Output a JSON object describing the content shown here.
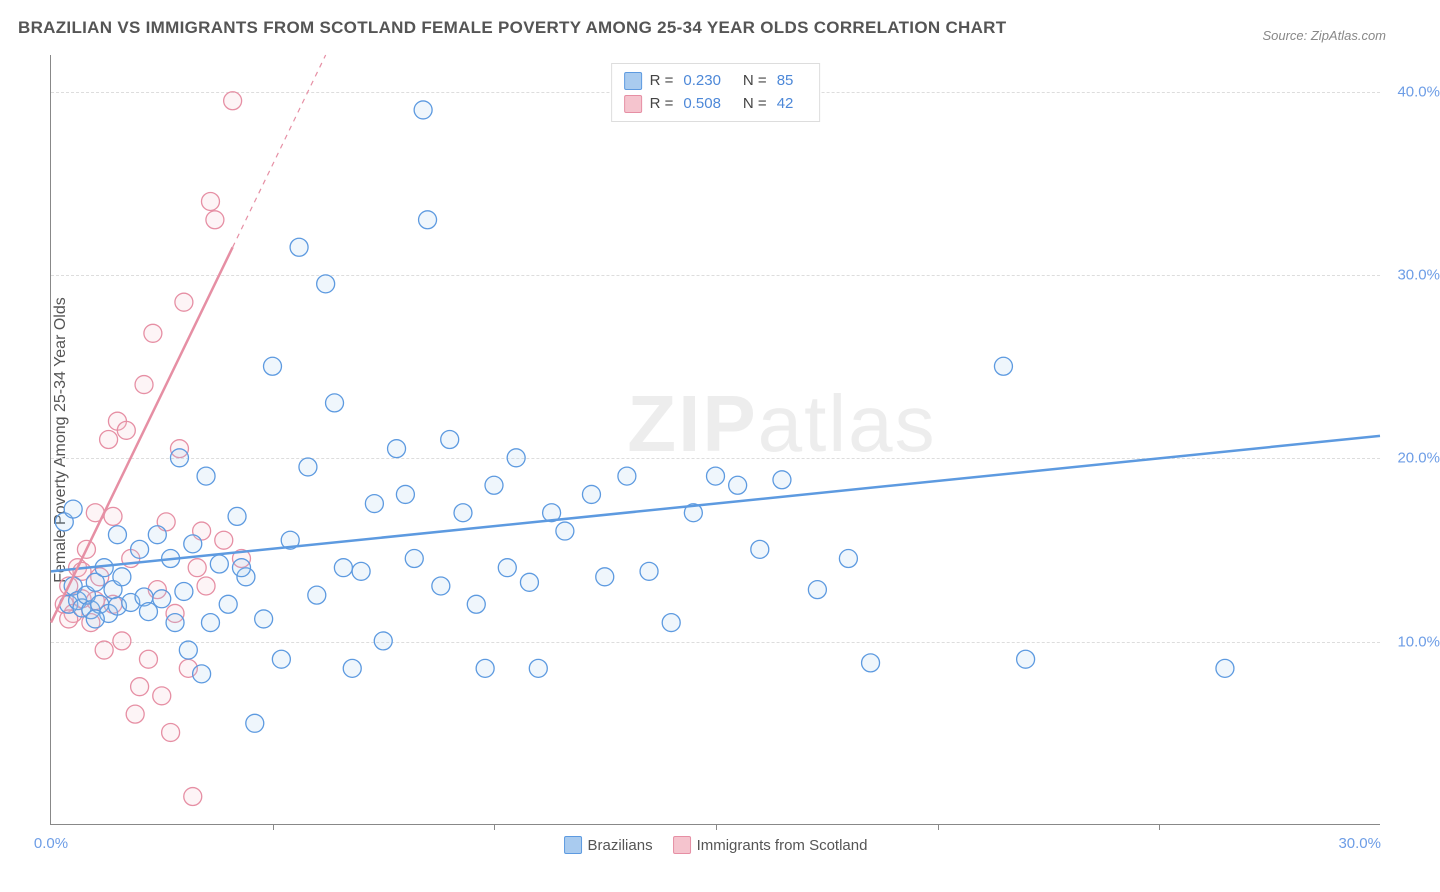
{
  "title": "BRAZILIAN VS IMMIGRANTS FROM SCOTLAND FEMALE POVERTY AMONG 25-34 YEAR OLDS CORRELATION CHART",
  "source_label": "Source: ZipAtlas.com",
  "watermark_a": "ZIP",
  "watermark_b": "atlas",
  "y_axis_title": "Female Poverty Among 25-34 Year Olds",
  "chart": {
    "type": "scatter",
    "background_color": "#ffffff",
    "grid_color": "#dddddd",
    "axis_color": "#888888",
    "xlim": [
      0,
      30
    ],
    "ylim": [
      0,
      42
    ],
    "ytick_step": 10,
    "xtick_step": 5,
    "x_labels": [
      "0.0%",
      "30.0%"
    ],
    "y_labels": [
      "10.0%",
      "20.0%",
      "30.0%",
      "40.0%"
    ],
    "tick_label_color": "#6d9de6",
    "axis_title_color": "#555555",
    "title_fontsize": 17,
    "label_fontsize": 15,
    "marker_radius": 9,
    "marker_stroke_width": 1.3,
    "marker_fill_opacity": 0.18,
    "trend_line_width": 2.5,
    "series": [
      {
        "name": "Brazilians",
        "color": "#5d9ae0",
        "fill_color": "#a9cbef",
        "stroke_color": "#5d9ae0",
        "R": "0.230",
        "N": "85",
        "trend": {
          "x1": 0,
          "y1": 13.8,
          "x2": 30,
          "y2": 21.2,
          "dashed_extension": false
        },
        "points": [
          [
            0.3,
            16.5
          ],
          [
            0.4,
            12.0
          ],
          [
            0.5,
            13.0
          ],
          [
            0.6,
            12.2
          ],
          [
            0.7,
            11.8
          ],
          [
            0.8,
            12.5
          ],
          [
            0.9,
            11.7
          ],
          [
            1.0,
            13.2
          ],
          [
            1.1,
            12.0
          ],
          [
            1.2,
            14.0
          ],
          [
            1.3,
            11.5
          ],
          [
            1.4,
            12.8
          ],
          [
            1.5,
            11.9
          ],
          [
            1.6,
            13.5
          ],
          [
            1.8,
            12.1
          ],
          [
            2.0,
            15.0
          ],
          [
            2.1,
            12.4
          ],
          [
            2.2,
            11.6
          ],
          [
            2.4,
            15.8
          ],
          [
            2.5,
            12.3
          ],
          [
            2.7,
            14.5
          ],
          [
            2.9,
            20.0
          ],
          [
            3.0,
            12.7
          ],
          [
            3.1,
            9.5
          ],
          [
            3.2,
            15.3
          ],
          [
            3.4,
            8.2
          ],
          [
            3.5,
            19.0
          ],
          [
            3.6,
            11.0
          ],
          [
            3.8,
            14.2
          ],
          [
            4.0,
            12.0
          ],
          [
            4.2,
            16.8
          ],
          [
            4.4,
            13.5
          ],
          [
            4.6,
            5.5
          ],
          [
            4.8,
            11.2
          ],
          [
            5.0,
            25.0
          ],
          [
            5.2,
            9.0
          ],
          [
            5.4,
            15.5
          ],
          [
            5.6,
            31.5
          ],
          [
            5.8,
            19.5
          ],
          [
            6.0,
            12.5
          ],
          [
            6.2,
            29.5
          ],
          [
            6.4,
            23.0
          ],
          [
            6.6,
            14.0
          ],
          [
            6.8,
            8.5
          ],
          [
            7.0,
            13.8
          ],
          [
            7.3,
            17.5
          ],
          [
            7.5,
            10.0
          ],
          [
            7.8,
            20.5
          ],
          [
            8.0,
            18.0
          ],
          [
            8.2,
            14.5
          ],
          [
            8.4,
            39.0
          ],
          [
            8.5,
            33.0
          ],
          [
            8.8,
            13.0
          ],
          [
            9.0,
            21.0
          ],
          [
            9.3,
            17.0
          ],
          [
            9.6,
            12.0
          ],
          [
            9.8,
            8.5
          ],
          [
            10.0,
            18.5
          ],
          [
            10.3,
            14.0
          ],
          [
            10.5,
            20.0
          ],
          [
            10.8,
            13.2
          ],
          [
            11.0,
            8.5
          ],
          [
            11.3,
            17.0
          ],
          [
            11.6,
            16.0
          ],
          [
            12.2,
            18.0
          ],
          [
            12.5,
            13.5
          ],
          [
            13.0,
            19.0
          ],
          [
            13.5,
            13.8
          ],
          [
            14.0,
            11.0
          ],
          [
            14.5,
            17.0
          ],
          [
            15.0,
            19.0
          ],
          [
            15.5,
            18.5
          ],
          [
            16.0,
            15.0
          ],
          [
            16.5,
            18.8
          ],
          [
            17.3,
            12.8
          ],
          [
            18.0,
            14.5
          ],
          [
            18.5,
            8.8
          ],
          [
            21.5,
            25.0
          ],
          [
            22.0,
            9.0
          ],
          [
            26.5,
            8.5
          ],
          [
            0.5,
            17.2
          ],
          [
            1.0,
            11.2
          ],
          [
            1.5,
            15.8
          ],
          [
            2.8,
            11.0
          ],
          [
            4.3,
            14.0
          ]
        ]
      },
      {
        "name": "Immigrants from Scotland",
        "color": "#e68fa4",
        "fill_color": "#f5c4ce",
        "stroke_color": "#e68fa4",
        "R": "0.508",
        "N": "42",
        "trend": {
          "x1": 0,
          "y1": 11.0,
          "x2": 4.1,
          "y2": 31.5,
          "dashed_extension": true,
          "dx2": 6.2,
          "dy2": 42
        },
        "points": [
          [
            0.3,
            12.0
          ],
          [
            0.4,
            13.0
          ],
          [
            0.5,
            11.5
          ],
          [
            0.6,
            14.0
          ],
          [
            0.7,
            12.3
          ],
          [
            0.8,
            15.0
          ],
          [
            0.9,
            11.0
          ],
          [
            1.0,
            17.0
          ],
          [
            1.1,
            13.5
          ],
          [
            1.2,
            9.5
          ],
          [
            1.3,
            21.0
          ],
          [
            1.4,
            12.0
          ],
          [
            1.5,
            22.0
          ],
          [
            1.6,
            10.0
          ],
          [
            1.7,
            21.5
          ],
          [
            1.8,
            14.5
          ],
          [
            1.9,
            6.0
          ],
          [
            2.0,
            7.5
          ],
          [
            2.1,
            24.0
          ],
          [
            2.2,
            9.0
          ],
          [
            2.3,
            26.8
          ],
          [
            2.4,
            12.8
          ],
          [
            2.5,
            7.0
          ],
          [
            2.6,
            16.5
          ],
          [
            2.7,
            5.0
          ],
          [
            2.8,
            11.5
          ],
          [
            2.9,
            20.5
          ],
          [
            3.0,
            28.5
          ],
          [
            3.1,
            8.5
          ],
          [
            3.2,
            1.5
          ],
          [
            3.3,
            14.0
          ],
          [
            3.4,
            16.0
          ],
          [
            3.5,
            13.0
          ],
          [
            3.6,
            34.0
          ],
          [
            3.7,
            33.0
          ],
          [
            3.9,
            15.5
          ],
          [
            4.1,
            39.5
          ],
          [
            4.3,
            14.5
          ],
          [
            0.4,
            11.2
          ],
          [
            0.7,
            13.8
          ],
          [
            1.0,
            12.2
          ],
          [
            1.4,
            16.8
          ]
        ]
      }
    ]
  },
  "legend_top": {
    "r_label": "R =",
    "n_label": "N ="
  },
  "legend_bottom": {
    "label_a": "Brazilians",
    "label_b": "Immigrants from Scotland"
  }
}
